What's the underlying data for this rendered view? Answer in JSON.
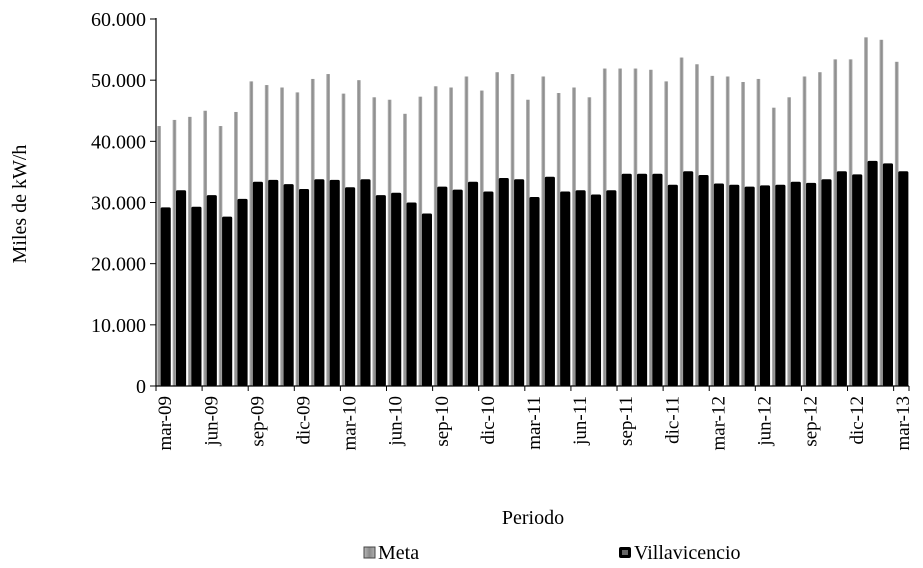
{
  "chart_data": {
    "type": "bar",
    "title": "",
    "xlabel": "Periodo",
    "ylabel": "Miles de kW/h",
    "ylim": [
      0,
      60000
    ],
    "y_ticks": [
      0,
      10000,
      20000,
      30000,
      40000,
      50000,
      60000
    ],
    "y_tick_labels": [
      "0",
      "10.000",
      "20.000",
      "30.000",
      "40.000",
      "50.000",
      "60.000"
    ],
    "legend_position": "bottom",
    "grid": false,
    "categories": [
      "mar-09",
      "abr-09",
      "may-09",
      "jun-09",
      "jul-09",
      "ago-09",
      "sep-09",
      "oct-09",
      "nov-09",
      "dic-09",
      "ene-10",
      "feb-10",
      "mar-10",
      "abr-10",
      "may-10",
      "jun-10",
      "jul-10",
      "ago-10",
      "sep-10",
      "oct-10",
      "nov-10",
      "dic-10",
      "ene-11",
      "feb-11",
      "mar-11",
      "abr-11",
      "may-11",
      "jun-11",
      "jul-11",
      "ago-11",
      "sep-11",
      "oct-11",
      "nov-11",
      "dic-11",
      "ene-12",
      "feb-12",
      "mar-12",
      "abr-12",
      "may-12",
      "jun-12",
      "jul-12",
      "ago-12",
      "sep-12",
      "oct-12",
      "nov-12",
      "dic-12",
      "ene-13",
      "feb-13",
      "mar-13"
    ],
    "x_tick_labels": [
      "mar-09",
      "jun-09",
      "sep-09",
      "dic-09",
      "mar-10",
      "jun-10",
      "sep-10",
      "dic-10",
      "mar-11",
      "jun-11",
      "sep-11",
      "dic-11",
      "mar-12",
      "jun-12",
      "sep-12",
      "dic-12",
      "mar-13"
    ],
    "series": [
      {
        "name": "Meta",
        "color": "#9a9a9a",
        "values": [
          42500,
          43500,
          44000,
          45000,
          42500,
          44800,
          49800,
          49200,
          48800,
          48000,
          50200,
          51000,
          47800,
          50000,
          47200,
          46800,
          44500,
          47300,
          49000,
          48800,
          50600,
          48300,
          51300,
          51000,
          46800,
          50600,
          47900,
          48800,
          47200,
          51900,
          51900,
          51900,
          51700,
          49800,
          53700,
          52600,
          50700,
          50600,
          49700,
          50200,
          45500,
          47200,
          50600,
          51300,
          53400,
          53400,
          57000,
          56600,
          53000
        ]
      },
      {
        "name": "Villavicencio",
        "color": "#000000",
        "values": [
          29200,
          32000,
          29300,
          31200,
          27700,
          30600,
          33400,
          33700,
          33000,
          32200,
          33800,
          33700,
          32500,
          33800,
          31200,
          31600,
          30000,
          28200,
          32600,
          32100,
          33400,
          31800,
          34000,
          33800,
          30900,
          34200,
          31800,
          32000,
          31300,
          32000,
          34700,
          34700,
          34700,
          32900,
          35100,
          34500,
          33100,
          32900,
          32600,
          32800,
          32900,
          33400,
          33200,
          33800,
          35100,
          34600,
          36800,
          36400,
          35100
        ]
      }
    ]
  }
}
